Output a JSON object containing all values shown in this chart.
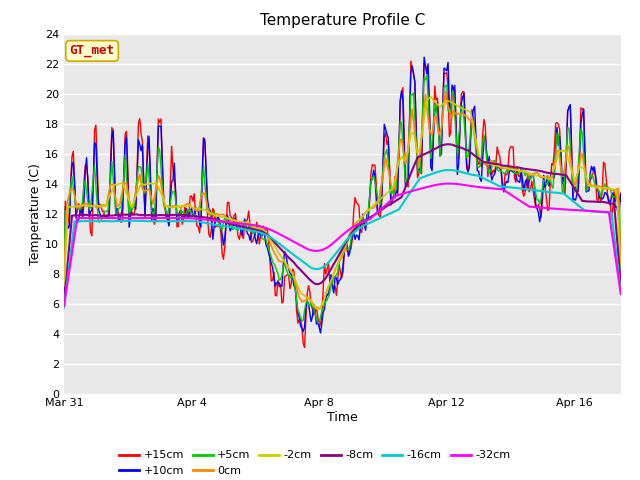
{
  "title": "Temperature Profile C",
  "xlabel": "Time",
  "ylabel": "Temperature (C)",
  "ylim": [
    0,
    24
  ],
  "yticks": [
    0,
    2,
    4,
    6,
    8,
    10,
    12,
    14,
    16,
    18,
    20,
    22,
    24
  ],
  "annotation_text": "GT_met",
  "annotation_bg": "#ffffcc",
  "annotation_border": "#ccaa00",
  "annotation_text_color": "#cc0000",
  "plot_bg": "#e8e8e8",
  "series": [
    {
      "label": "+15cm",
      "color": "#ff0000"
    },
    {
      "label": "+10cm",
      "color": "#0000ff"
    },
    {
      "label": "+5cm",
      "color": "#00cc00"
    },
    {
      "label": "0cm",
      "color": "#ff8800"
    },
    {
      "label": "-2cm",
      "color": "#cccc00"
    },
    {
      "label": "-8cm",
      "color": "#880088"
    },
    {
      "label": "-16cm",
      "color": "#00cccc"
    },
    {
      "label": "-32cm",
      "color": "#ff00ff"
    }
  ],
  "x_tick_labels": [
    "Mar 31",
    "Apr 4",
    "Apr 8",
    "Apr 12",
    "Apr 16"
  ],
  "x_tick_positions": [
    0,
    96,
    192,
    288,
    384
  ]
}
